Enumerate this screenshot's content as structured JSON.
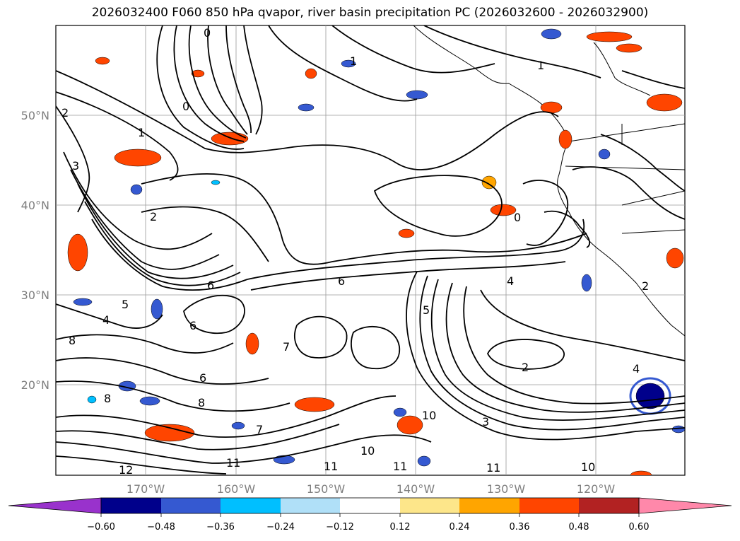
{
  "title": "2026032400 F060 850 hPa qvapor, river basin precipitation PC (2026032600 - 2026032900)",
  "map": {
    "lat_labels": [
      "50°N",
      "40°N",
      "30°N",
      "20°N"
    ],
    "lon_labels": [
      "170°W",
      "160°W",
      "150°W",
      "140°W",
      "130°W",
      "120°W"
    ],
    "gridlines": true,
    "contour_variable": "850 hPa qvapor",
    "contour_labels": [
      "0",
      "1",
      "2",
      "2",
      "2",
      "3",
      "3",
      "4",
      "4",
      "4",
      "5",
      "5",
      "6",
      "6",
      "6",
      "6",
      "7",
      "7",
      "8",
      "8",
      "8",
      "10",
      "10",
      "10",
      "11",
      "11",
      "11",
      "11",
      "12",
      "2",
      "1",
      "0",
      "0",
      "1"
    ]
  },
  "colorbar": {
    "ticks": [
      "−0.60",
      "−0.48",
      "−0.36",
      "−0.24",
      "−0.12",
      "0.12",
      "0.24",
      "0.36",
      "0.48",
      "0.60"
    ],
    "colors": [
      "#9932cc",
      "#00008b",
      "#3559d1",
      "#00bfff",
      "#b0e0f8",
      "#ffffff",
      "#fde68a",
      "#ffa500",
      "#ff4500",
      "#b22222",
      "#ff88aa"
    ]
  }
}
